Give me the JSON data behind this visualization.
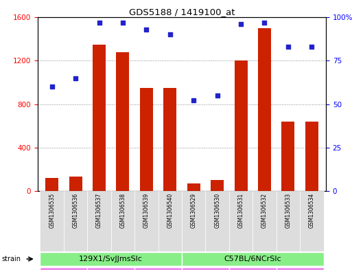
{
  "title": "GDS5188 / 1419100_at",
  "samples": [
    "GSM1306535",
    "GSM1306536",
    "GSM1306537",
    "GSM1306538",
    "GSM1306539",
    "GSM1306540",
    "GSM1306529",
    "GSM1306530",
    "GSM1306531",
    "GSM1306532",
    "GSM1306533",
    "GSM1306534"
  ],
  "counts": [
    120,
    130,
    1350,
    1280,
    950,
    950,
    70,
    100,
    1200,
    1500,
    640,
    640
  ],
  "percentiles": [
    60,
    65,
    97,
    97,
    93,
    90,
    52,
    55,
    96,
    97,
    83,
    83
  ],
  "bar_color": "#cc2200",
  "dot_color": "#2222cc",
  "ylim_left": [
    0,
    1600
  ],
  "ylim_right": [
    0,
    100
  ],
  "yticks_left": [
    0,
    400,
    800,
    1200,
    1600
  ],
  "yticks_right": [
    0,
    25,
    50,
    75,
    100
  ],
  "strain_color": "#88ee88",
  "protocol_color": "#ee88ee",
  "xtick_bg": "#dddddd",
  "background_color": "#ffffff",
  "grid_color": "#888888"
}
